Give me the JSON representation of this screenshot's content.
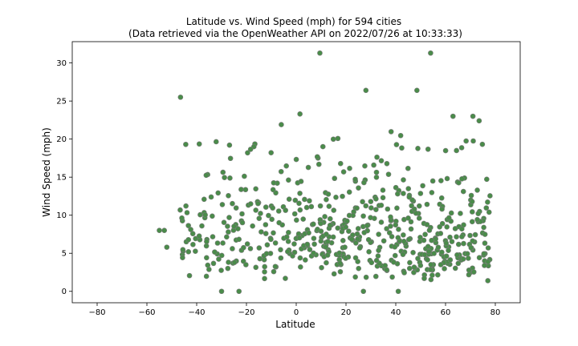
{
  "chart_data": {
    "type": "scatter",
    "title_line1": "Latitude vs. Wind Speed (mph) for 594 cities",
    "title_line2": "(Data retrieved via the OpenWeather API on 2022/07/26 at 10:33:33)",
    "xlabel": "Latitude",
    "ylabel": "Wind Speed (mph)",
    "xlim": [
      -90,
      90
    ],
    "ylim": [
      -1.5,
      32.8
    ],
    "xticks": [
      -80,
      -60,
      -40,
      -20,
      0,
      20,
      40,
      60,
      80
    ],
    "yticks": [
      0,
      5,
      10,
      15,
      20,
      25,
      30
    ],
    "grid": false,
    "marker_color": "#4a8c4a",
    "marker_edge_color": "#7a7a7a",
    "n_points": 594,
    "highlighted_points": [
      {
        "x": 9.5,
        "y": 31.3
      },
      {
        "x": 54,
        "y": 31.3
      },
      {
        "x": 28,
        "y": 26.4
      },
      {
        "x": 48.5,
        "y": 26.4
      },
      {
        "x": -46.5,
        "y": 25.5
      },
      {
        "x": 1.5,
        "y": 23.3
      },
      {
        "x": 71,
        "y": 23.0
      },
      {
        "x": 73.5,
        "y": 22.4
      },
      {
        "x": -6,
        "y": 21.9
      },
      {
        "x": 63,
        "y": 23.0
      },
      {
        "x": 77.5,
        "y": 10.4
      },
      {
        "x": 77,
        "y": 1.4
      },
      {
        "x": -55,
        "y": 8.0
      },
      {
        "x": -53,
        "y": 8.0
      },
      {
        "x": -52,
        "y": 5.8
      },
      {
        "x": -30,
        "y": 0.0
      },
      {
        "x": -23,
        "y": 0.0
      },
      {
        "x": 27,
        "y": 0.0
      },
      {
        "x": 41,
        "y": 0.0
      }
    ],
    "distribution_note": "dense cloud for latitude -47 to 78, most wind speeds between 0 and 15 mph"
  }
}
